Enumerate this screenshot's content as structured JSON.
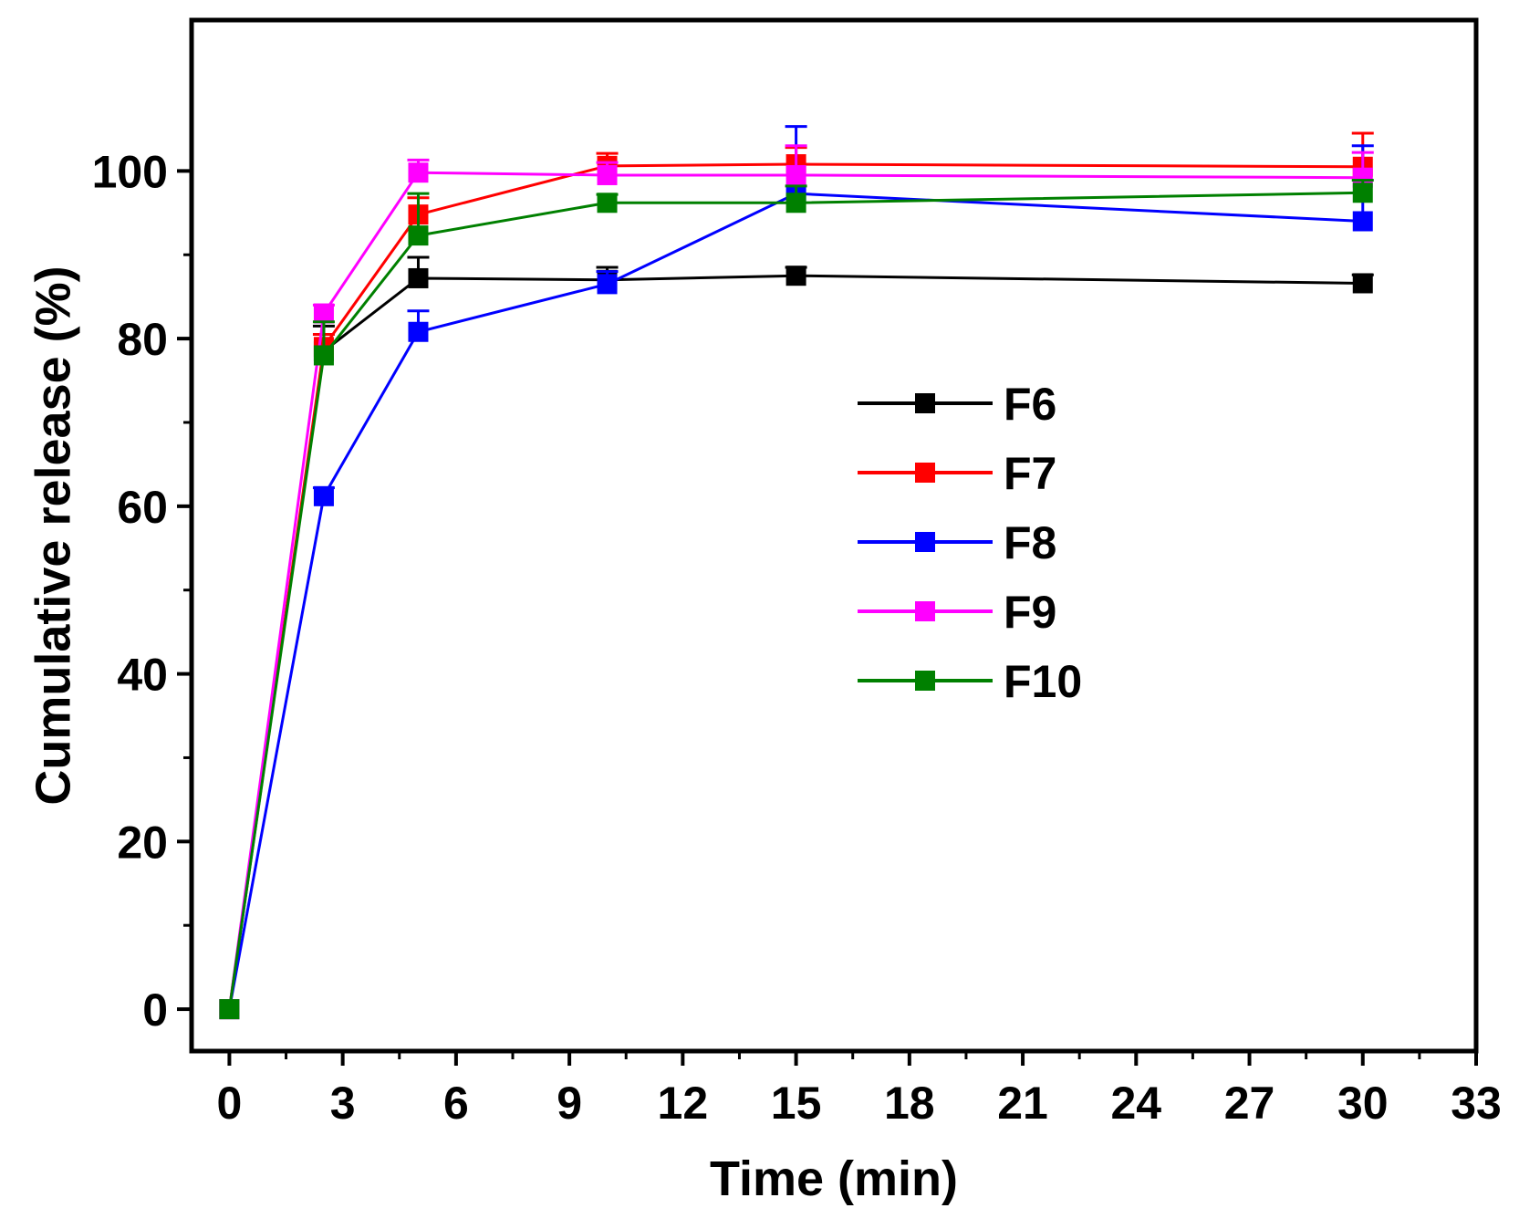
{
  "chart_data": {
    "type": "line",
    "title": "",
    "xlabel": "Time (min)",
    "ylabel": "Cumulative release (%)",
    "xlim": [
      -1,
      33
    ],
    "ylim": [
      -5,
      118
    ],
    "xticks": [
      0,
      3,
      6,
      9,
      12,
      15,
      18,
      21,
      24,
      27,
      30,
      33
    ],
    "xtick_labels": [
      "0",
      "3",
      "6",
      "9",
      "12",
      "15",
      "18",
      "21",
      "24",
      "27",
      "30",
      "33"
    ],
    "yticks": [
      0,
      20,
      40,
      60,
      80,
      100
    ],
    "ytick_labels": [
      "0",
      "20",
      "40",
      "60",
      "80",
      "100"
    ],
    "x": [
      0,
      2.5,
      5,
      10,
      15,
      30
    ],
    "grid": false,
    "legend_position": "center-right",
    "series": [
      {
        "name": "F6",
        "color": "#000000",
        "values": [
          0,
          78.5,
          87.2,
          87.0,
          87.5,
          86.6
        ],
        "errors": [
          0,
          3.0,
          2.5,
          1.5,
          1.0,
          1.0
        ]
      },
      {
        "name": "F7",
        "color": "#ff0000",
        "values": [
          0,
          79.0,
          94.8,
          100.6,
          100.8,
          100.5
        ],
        "errors": [
          0,
          1.5,
          2.0,
          1.5,
          2.0,
          4.0
        ]
      },
      {
        "name": "F8",
        "color": "#0000ff",
        "values": [
          0,
          61.2,
          80.8,
          86.5,
          97.3,
          94.0
        ],
        "errors": [
          0,
          1.0,
          2.5,
          1.5,
          8.0,
          9.0
        ]
      },
      {
        "name": "F9",
        "color": "#ff00ff",
        "values": [
          0,
          83.0,
          99.8,
          99.5,
          99.5,
          99.2
        ],
        "errors": [
          0,
          1.0,
          1.5,
          1.5,
          3.5,
          3.0
        ]
      },
      {
        "name": "F10",
        "color": "#008000",
        "values": [
          0,
          78.0,
          92.3,
          96.2,
          96.2,
          97.4
        ],
        "errors": [
          0,
          4.0,
          5.0,
          1.0,
          2.0,
          1.5
        ]
      }
    ]
  }
}
